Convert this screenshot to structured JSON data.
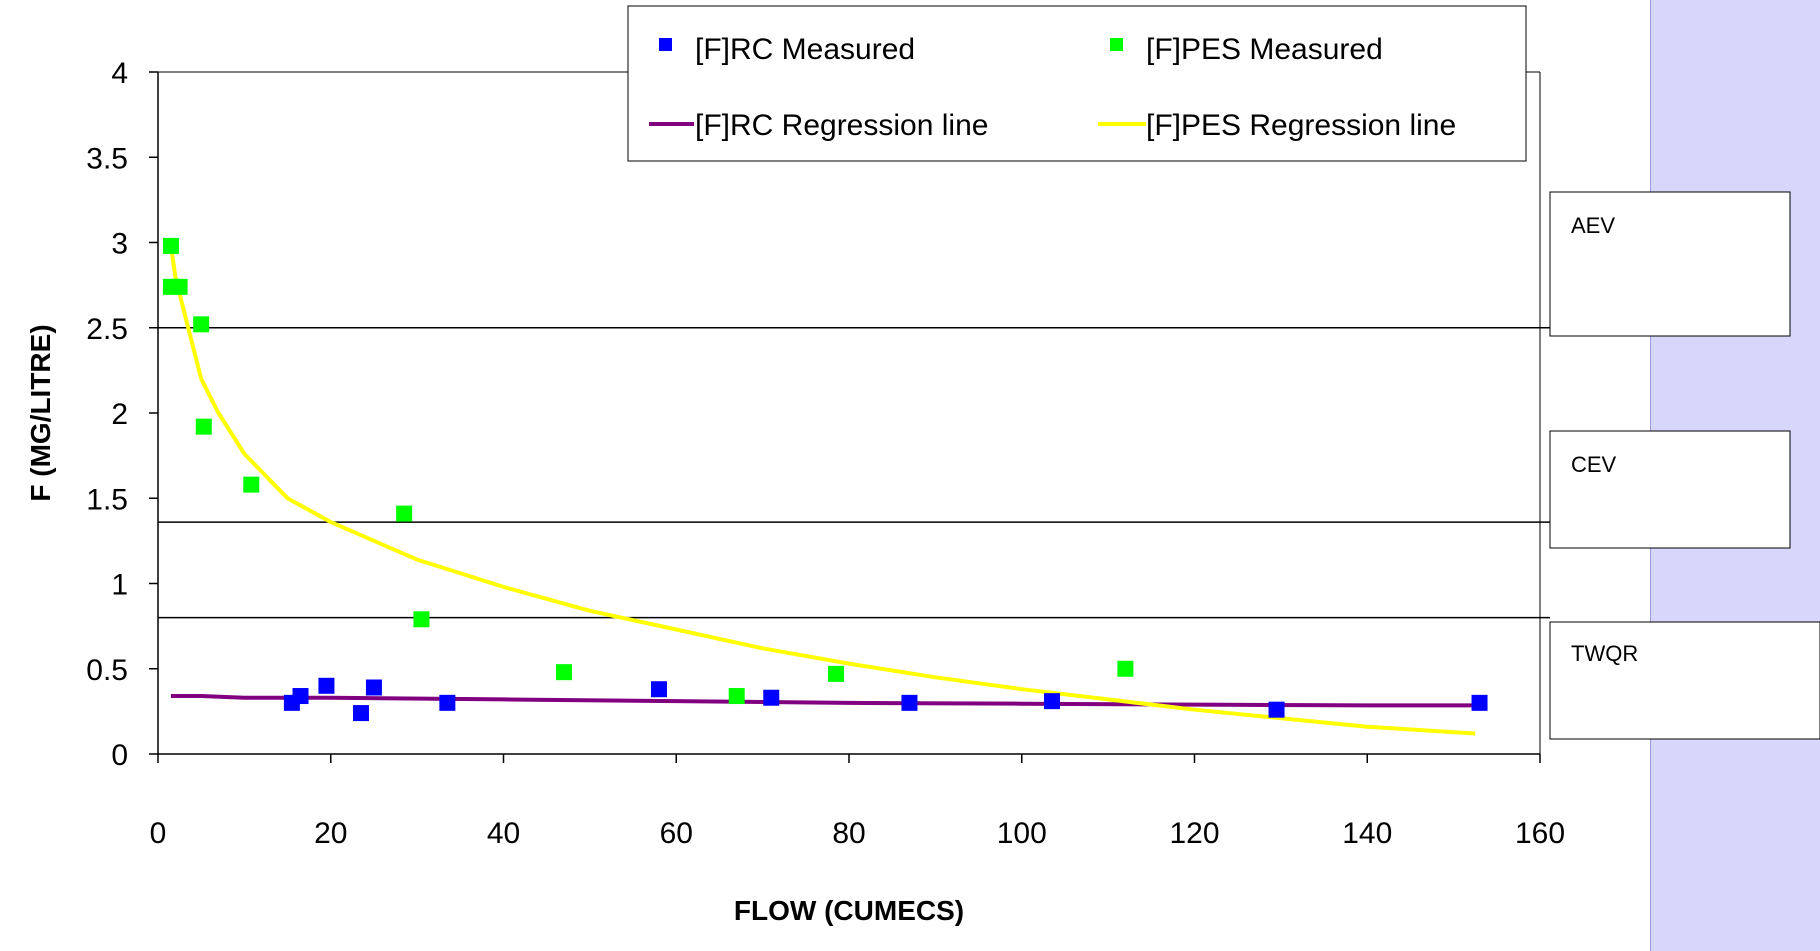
{
  "chart_data": {
    "type": "scatter",
    "title": "",
    "xlabel": "FLOW (CUMECS)",
    "ylabel": "F (MG/LITRE)",
    "xlim": [
      0,
      160
    ],
    "ylim": [
      0,
      4
    ],
    "x_ticks": [
      "0",
      "20",
      "40",
      "60",
      "80",
      "100",
      "120",
      "140",
      "160"
    ],
    "y_ticks": [
      "0",
      "0.5",
      "1",
      "1.5",
      "2",
      "2.5",
      "3",
      "3.5",
      "4"
    ],
    "grid": false,
    "legend_position": "top",
    "series": [
      {
        "name": "[F]RC Measured",
        "kind": "markers",
        "color": "#0000ff",
        "points": [
          [
            15.5,
            0.3
          ],
          [
            16.5,
            0.34
          ],
          [
            19.5,
            0.4
          ],
          [
            23.5,
            0.24
          ],
          [
            25,
            0.39
          ],
          [
            33.5,
            0.3
          ],
          [
            58,
            0.38
          ],
          [
            71,
            0.33
          ],
          [
            87,
            0.3
          ],
          [
            103.5,
            0.31
          ],
          [
            129.5,
            0.26
          ],
          [
            153,
            0.3
          ]
        ]
      },
      {
        "name": "[F]PES Measured",
        "kind": "markers",
        "color": "#00ff00",
        "points": [
          [
            1.5,
            2.98
          ],
          [
            1.5,
            2.74
          ],
          [
            2.5,
            2.74
          ],
          [
            5,
            2.52
          ],
          [
            5.3,
            1.92
          ],
          [
            10.8,
            1.58
          ],
          [
            28.5,
            1.41
          ],
          [
            30.5,
            0.79
          ],
          [
            47,
            0.48
          ],
          [
            67,
            0.34
          ],
          [
            78.5,
            0.47
          ],
          [
            112,
            0.5
          ]
        ]
      },
      {
        "name": "[F]RC Regression line",
        "kind": "line",
        "color": "#800080",
        "points": [
          [
            1.5,
            0.34
          ],
          [
            5,
            0.34
          ],
          [
            10,
            0.33
          ],
          [
            20,
            0.33
          ],
          [
            40,
            0.32
          ],
          [
            60,
            0.31
          ],
          [
            80,
            0.3
          ],
          [
            100,
            0.295
          ],
          [
            120,
            0.29
          ],
          [
            140,
            0.285
          ],
          [
            153,
            0.285
          ]
        ]
      },
      {
        "name": "[F]PES Regression line",
        "kind": "line",
        "color": "#ffff00",
        "points": [
          [
            1.5,
            2.98
          ],
          [
            2,
            2.8
          ],
          [
            3,
            2.6
          ],
          [
            5,
            2.2
          ],
          [
            7,
            2.0
          ],
          [
            10,
            1.76
          ],
          [
            15,
            1.5
          ],
          [
            20,
            1.36
          ],
          [
            30,
            1.14
          ],
          [
            40,
            0.98
          ],
          [
            50,
            0.84
          ],
          [
            60,
            0.73
          ],
          [
            70,
            0.62
          ],
          [
            80,
            0.53
          ],
          [
            90,
            0.45
          ],
          [
            100,
            0.38
          ],
          [
            110,
            0.32
          ],
          [
            120,
            0.26
          ],
          [
            130,
            0.21
          ],
          [
            140,
            0.16
          ],
          [
            152.5,
            0.12
          ]
        ]
      }
    ],
    "thresholds": [
      {
        "label": "AEV",
        "value": 2.5
      },
      {
        "label": "CEV",
        "value": 1.36
      },
      {
        "label": "TWQR",
        "value": 0.8
      }
    ]
  }
}
